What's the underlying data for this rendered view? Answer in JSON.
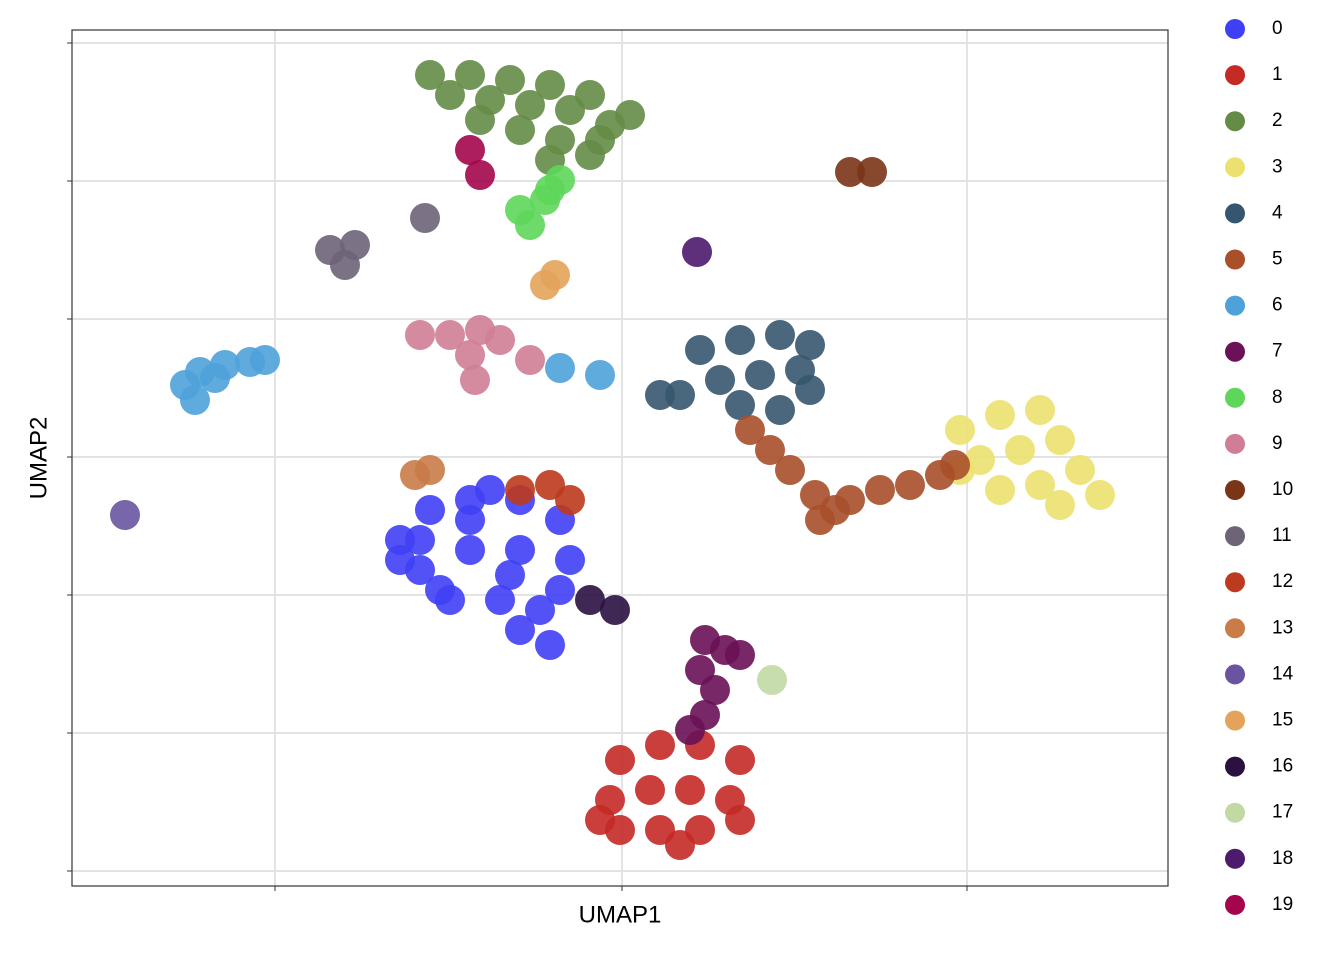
{
  "chart_data": {
    "type": "scatter",
    "xlabel": "UMAP1",
    "ylabel": "UMAP2",
    "xlim": [
      0,
      1096
    ],
    "ylim": [
      0,
      856
    ],
    "xticks": [
      203,
      550,
      895
    ],
    "yticks": [
      15,
      153,
      291,
      429,
      567,
      705,
      843
    ],
    "grid": true,
    "series": [
      {
        "name": "0",
        "color": "#3f3ff5",
        "x": [
          328,
          358,
          398,
          448,
          488,
          348,
          398,
          448,
          498,
          378,
          428,
          468,
          448,
          478,
          418,
          368,
          328,
          398,
          348,
          488,
          438
        ],
        "y": [
          346,
          376,
          386,
          386,
          366,
          316,
          336,
          336,
          326,
          286,
          286,
          276,
          256,
          241,
          396,
          296,
          326,
          366,
          346,
          296,
          311
        ]
      },
      {
        "name": "1",
        "color": "#c42a26",
        "x": [
          548,
          588,
          628,
          668,
          538,
          578,
          618,
          658,
          548,
          588,
          628,
          668,
          608,
          528
        ],
        "y": [
          126,
          141,
          141,
          126,
          86,
          96,
          96,
          86,
          56,
          56,
          56,
          66,
          41,
          66
        ]
      },
      {
        "name": "2",
        "color": "#648c46",
        "x": [
          358,
          398,
          438,
          478,
          518,
          558,
          378,
          418,
          458,
          498,
          538,
          408,
          448,
          488,
          528,
          478,
          518
        ],
        "y": [
          811,
          811,
          806,
          801,
          791,
          771,
          791,
          786,
          781,
          776,
          761,
          766,
          756,
          746,
          746,
          726,
          731
        ]
      },
      {
        "name": "3",
        "color": "#ece16f",
        "x": [
          888,
          928,
          968,
          908,
          948,
          988,
          928,
          968,
          1008,
          1028,
          988,
          888
        ],
        "y": [
          456,
          471,
          476,
          426,
          436,
          446,
          396,
          401,
          416,
          391,
          381,
          416
        ]
      },
      {
        "name": "4",
        "color": "#36566f",
        "x": [
          628,
          668,
          708,
          738,
          648,
          688,
          728,
          608,
          668,
          708,
          738,
          588
        ],
        "y": [
          536,
          546,
          551,
          541,
          506,
          511,
          516,
          491,
          481,
          476,
          496,
          491
        ]
      },
      {
        "name": "5",
        "color": "#a94f2a",
        "x": [
          678,
          698,
          718,
          743,
          763,
          778,
          808,
          838,
          868,
          883,
          748
        ],
        "y": [
          456,
          436,
          416,
          391,
          376,
          386,
          396,
          401,
          411,
          421,
          366
        ]
      },
      {
        "name": "6",
        "color": "#4ea2d9",
        "x": [
          128,
          153,
          178,
          193,
          143,
          113,
          123,
          528,
          488
        ],
        "y": [
          514,
          521,
          524,
          526,
          508,
          501,
          486,
          511,
          518
        ]
      },
      {
        "name": "7",
        "color": "#6a1157",
        "x": [
          633,
          653,
          668,
          628,
          643,
          633,
          618
        ],
        "y": [
          246,
          236,
          231,
          216,
          196,
          171,
          156
        ]
      },
      {
        "name": "8",
        "color": "#5dd65a",
        "x": [
          488,
          473,
          448,
          458,
          478
        ],
        "y": [
          706,
          686,
          676,
          661,
          696
        ]
      },
      {
        "name": "9",
        "color": "#cf7e96",
        "x": [
          348,
          378,
          408,
          428,
          398,
          458,
          403
        ],
        "y": [
          551,
          551,
          556,
          546,
          531,
          526,
          506
        ]
      },
      {
        "name": "10",
        "color": "#7a3418",
        "x": [
          778,
          800
        ],
        "y": [
          714,
          714
        ]
      },
      {
        "name": "11",
        "color": "#6d6478",
        "x": [
          258,
          283,
          273,
          353
        ],
        "y": [
          636,
          641,
          621,
          668
        ]
      },
      {
        "name": "12",
        "color": "#bc3a1d",
        "x": [
          448,
          478,
          498
        ],
        "y": [
          396,
          401,
          386
        ]
      },
      {
        "name": "13",
        "color": "#c97b48",
        "x": [
          343,
          358
        ],
        "y": [
          411,
          416
        ]
      },
      {
        "name": "14",
        "color": "#6a54a0",
        "x": [
          53
        ],
        "y": [
          371
        ]
      },
      {
        "name": "15",
        "color": "#e3a35a",
        "x": [
          483,
          473
        ],
        "y": [
          611,
          601
        ]
      },
      {
        "name": "16",
        "color": "#2a1140",
        "x": [
          518,
          543
        ],
        "y": [
          286,
          276
        ]
      },
      {
        "name": "17",
        "color": "#c2d9a4",
        "x": [
          700
        ],
        "y": [
          206
        ]
      },
      {
        "name": "18",
        "color": "#4d1a6e",
        "x": [
          625
        ],
        "y": [
          634
        ]
      },
      {
        "name": "19",
        "color": "#a3064d",
        "x": [
          398,
          408
        ],
        "y": [
          736,
          711
        ]
      }
    ]
  }
}
